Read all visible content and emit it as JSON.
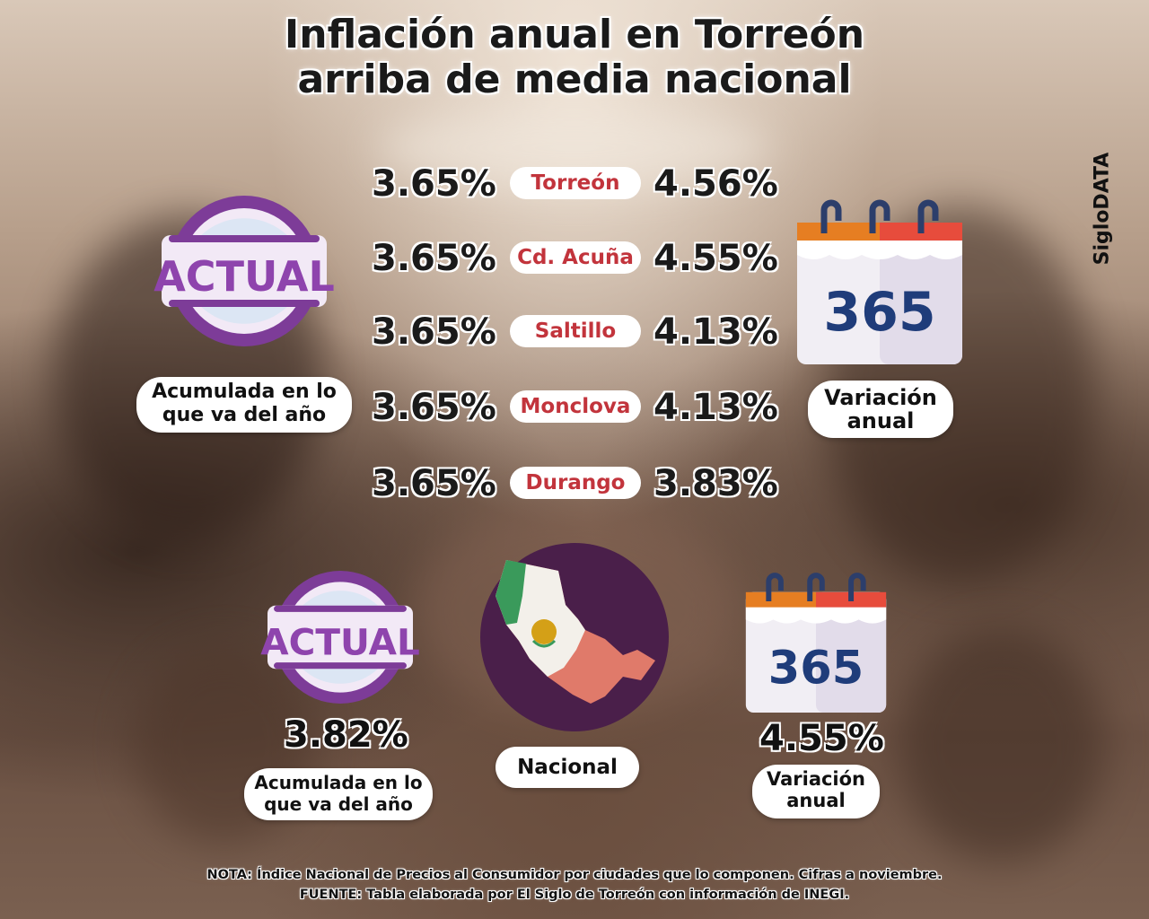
{
  "title": {
    "line1": "Inflación anual en Torreón",
    "line2": "arriba de media nacional"
  },
  "brand": "SigloDATA",
  "cities": [
    {
      "name": "Torreón",
      "acumulada": "3.65%",
      "anual": "4.56%"
    },
    {
      "name": "Cd. Acuña",
      "acumulada": "3.65%",
      "anual": "4.55%"
    },
    {
      "name": "Saltillo",
      "acumulada": "3.65%",
      "anual": "4.13%"
    },
    {
      "name": "Monclova",
      "acumulada": "3.65%",
      "anual": "4.13%"
    },
    {
      "name": "Durango",
      "acumulada": "3.65%",
      "anual": "3.83%"
    }
  ],
  "legend": {
    "acumulada_line1": "Acumulada en lo",
    "acumulada_line2": "que va del año",
    "variacion_line1": "Variación",
    "variacion_line2": "anual"
  },
  "icons": {
    "actual_text": "ACTUAL",
    "calendar_text": "365"
  },
  "national": {
    "label": "Nacional",
    "acumulada": "3.82%",
    "anual": "4.55%"
  },
  "footer": {
    "nota_label": "NOTA:",
    "nota": " Índice Nacional de Precios al Consumidor por ciudades que lo componen. Cifras a noviembre.",
    "fuente_label": "FUENTE:",
    "fuente": " Tabla elaborada por El Siglo de Torreón con información de INEGI."
  },
  "colors": {
    "purple_light": "#9b59b6",
    "purple_dark": "#6c3483",
    "city_red": "#c2343c",
    "map_circle": "#4a1f4a"
  }
}
